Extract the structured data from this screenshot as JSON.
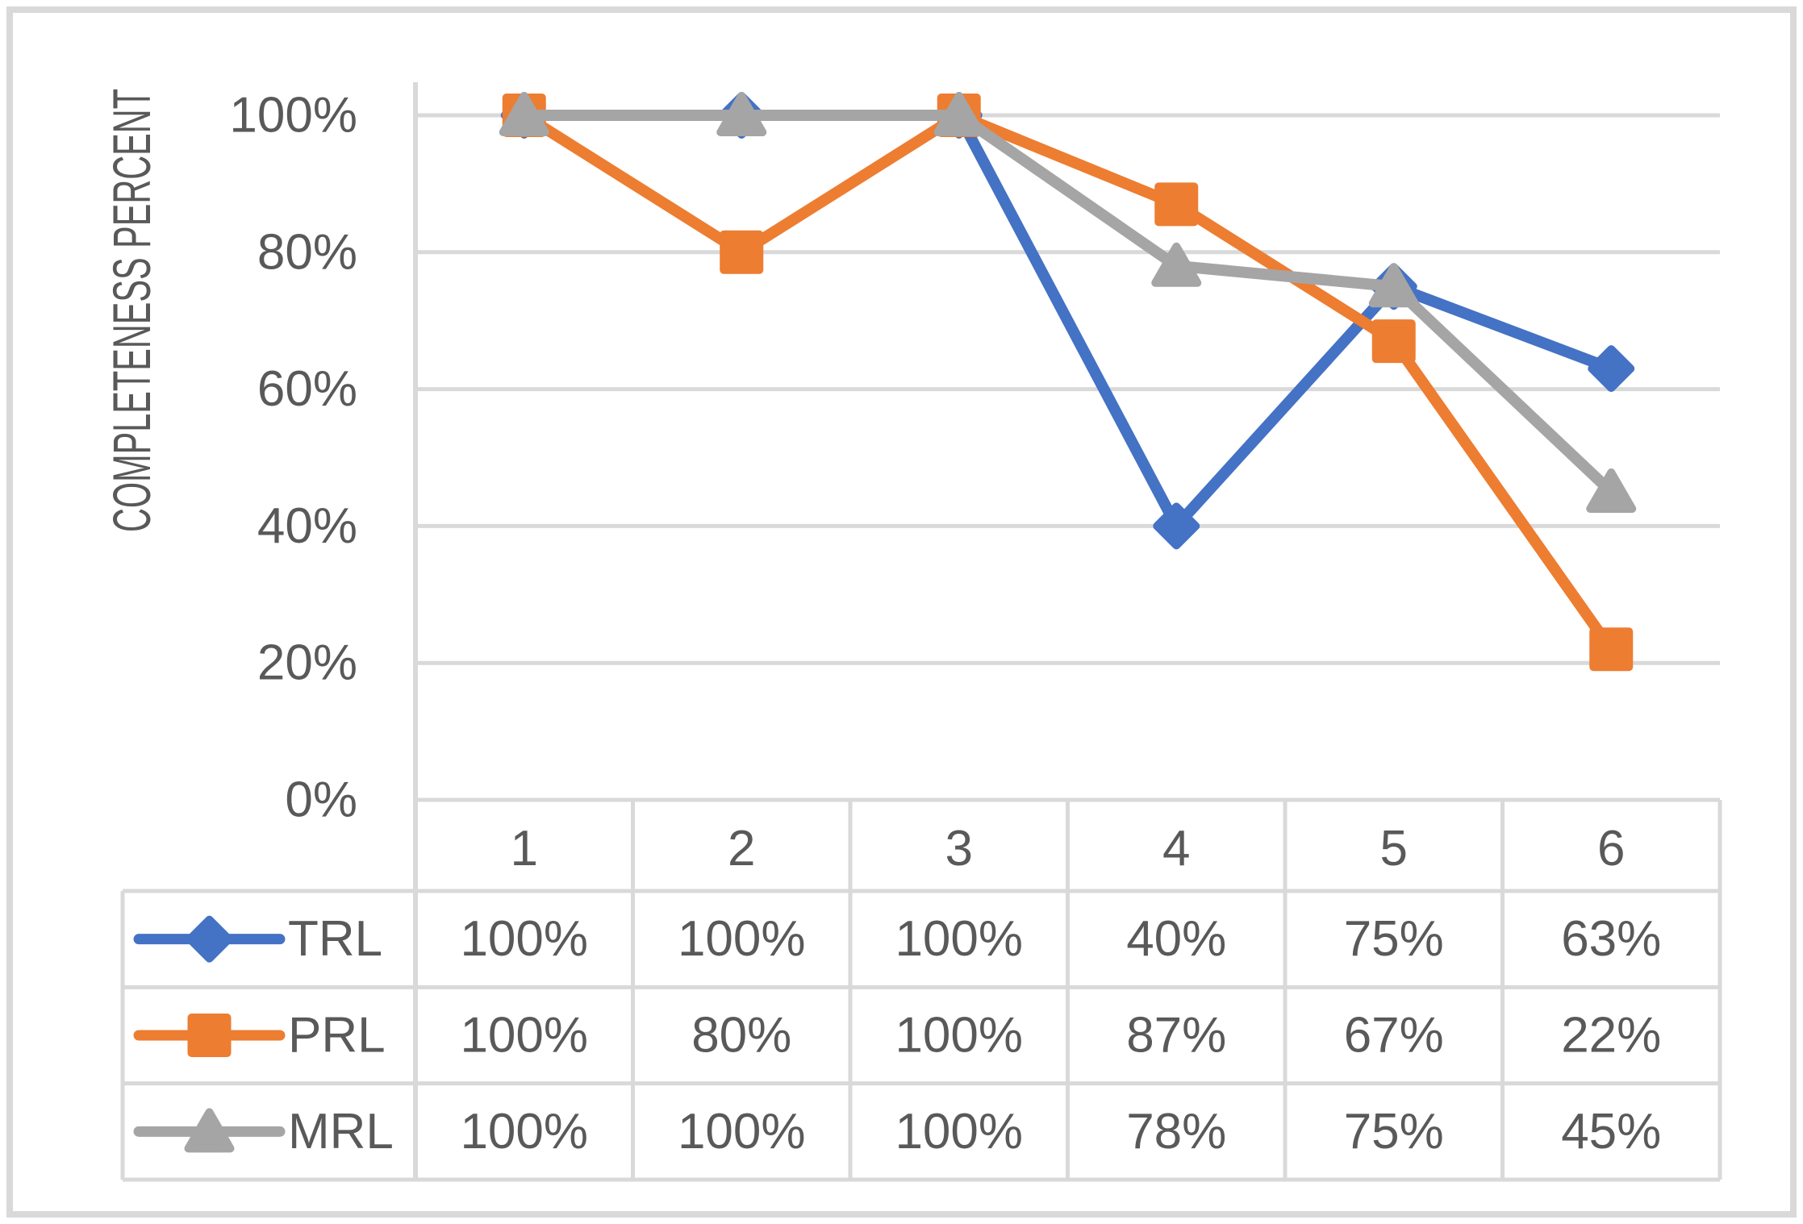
{
  "chart_data": {
    "type": "line",
    "title": "",
    "xlabel": "",
    "ylabel": "COMPLETENESS PERCENT",
    "categories": [
      "1",
      "2",
      "3",
      "4",
      "5",
      "6"
    ],
    "series": [
      {
        "name": "TRL",
        "marker": "diamond",
        "color": "#4472C4",
        "values": [
          100,
          100,
          100,
          40,
          75,
          63
        ],
        "labels": [
          "100%",
          "100%",
          "100%",
          "40%",
          "75%",
          "63%"
        ]
      },
      {
        "name": "PRL",
        "marker": "square",
        "color": "#ED7D31",
        "values": [
          100,
          80,
          100,
          87,
          67,
          22
        ],
        "labels": [
          "100%",
          "80%",
          "100%",
          "87%",
          "67%",
          "22%"
        ]
      },
      {
        "name": "MRL",
        "marker": "triangle",
        "color": "#A5A5A5",
        "values": [
          100,
          100,
          100,
          78,
          75,
          45
        ],
        "labels": [
          "100%",
          "100%",
          "100%",
          "78%",
          "75%",
          "45%"
        ]
      }
    ],
    "y_ticks": [
      "100%",
      "80%",
      "60%",
      "40%",
      "20%",
      "0%"
    ],
    "y_tick_values": [
      100,
      80,
      60,
      40,
      20,
      0
    ],
    "ylim": [
      0,
      100
    ],
    "grid": true,
    "legend_position": "data-table"
  },
  "colors": {
    "blue_series": "#4472C4",
    "orange_series": "#ED7D31",
    "gray_series": "#A5A5A5",
    "text": "#595959",
    "gridline": "#D9D9D9",
    "frame_border": "#D9D9D9",
    "background": "#FFFFFF"
  }
}
